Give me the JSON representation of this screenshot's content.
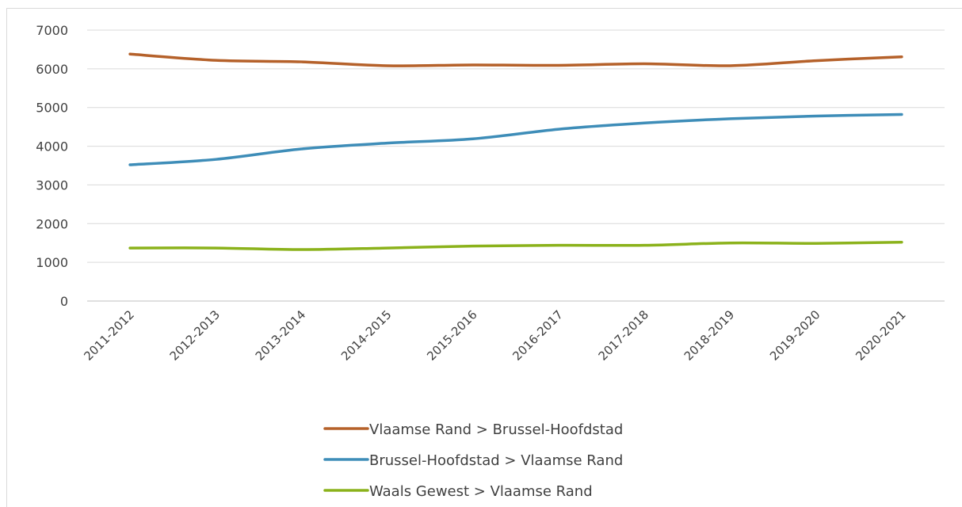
{
  "chart_data": {
    "type": "line",
    "title": "",
    "xlabel": "",
    "ylabel": "",
    "categories": [
      "2011-2012",
      "2012-2013",
      "2013-2014",
      "2014-2015",
      "2015-2016",
      "2016-2017",
      "2017-2018",
      "2018-2019",
      "2019-2020",
      "2020-2021"
    ],
    "ylim": [
      0,
      7000
    ],
    "yticks": [
      0,
      1000,
      2000,
      3000,
      4000,
      5000,
      6000,
      7000
    ],
    "grid": true,
    "legend_position": "bottom",
    "series": [
      {
        "name": "Vlaamse Rand > Brussel-Hoofdstad",
        "color": "#B5612A",
        "values": [
          6380,
          6220,
          6180,
          6080,
          6100,
          6090,
          6130,
          6080,
          6210,
          6310
        ]
      },
      {
        "name": "Brussel-Hoofdstad > Vlaamse Rand",
        "color": "#3E8DB8",
        "values": [
          3520,
          3660,
          3930,
          4080,
          4190,
          4440,
          4600,
          4710,
          4780,
          4820
        ]
      },
      {
        "name": "Waals Gewest > Vlaamse Rand",
        "color": "#8BB21B",
        "values": [
          1370,
          1370,
          1330,
          1370,
          1420,
          1440,
          1440,
          1500,
          1490,
          1520
        ]
      }
    ]
  }
}
